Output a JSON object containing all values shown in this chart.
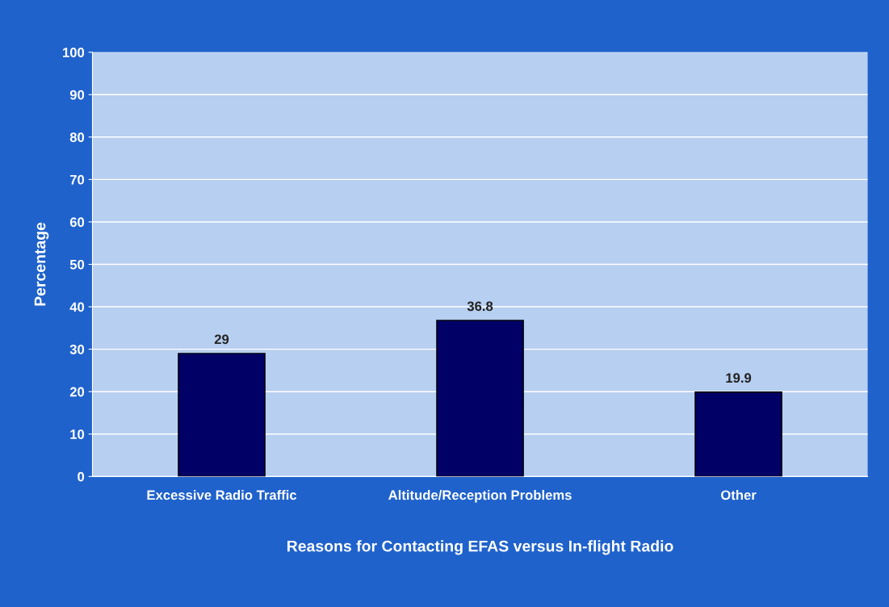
{
  "chart_data": {
    "type": "bar",
    "xlabel": "Reasons for Contacting EFAS versus In-flight Radio",
    "ylabel": "Percentage",
    "categories": [
      "Excessive Radio Traffic",
      "Altitude/Reception Problems",
      "Other"
    ],
    "values": [
      29,
      36.8,
      19.9
    ],
    "color": "#000066",
    "ylim": [
      0,
      100
    ],
    "yticks": [
      0,
      10,
      20,
      30,
      40,
      50,
      60,
      70,
      80,
      90,
      100
    ],
    "grid": "y",
    "data_labels": true
  }
}
